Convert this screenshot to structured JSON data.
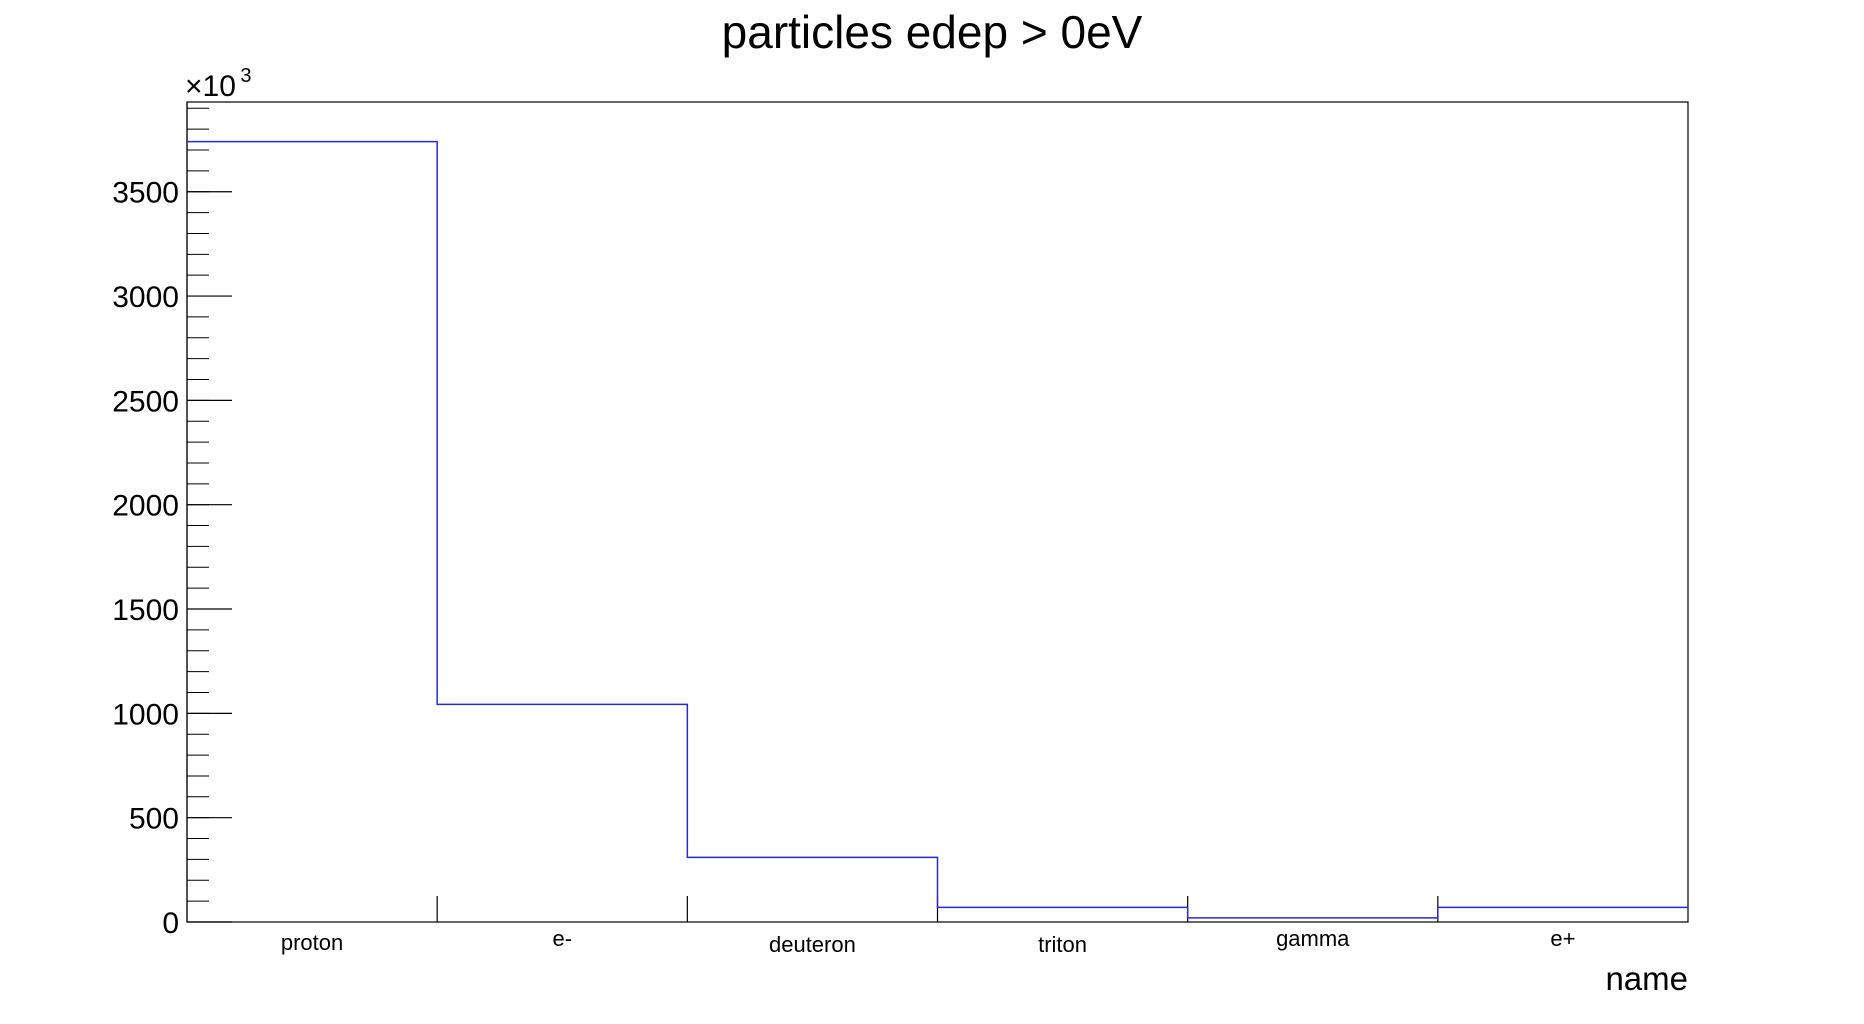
{
  "chart_data": {
    "type": "bar",
    "style": "step-histogram",
    "title": "particles edep > 0eV",
    "xlabel": "name",
    "ylabel": "",
    "y_multiplier_base": "×10",
    "y_multiplier_exp": "3",
    "categories": [
      "proton",
      "e-",
      "deuteron",
      "triton",
      "gamma",
      "e+"
    ],
    "values": [
      3740,
      1043,
      310,
      70,
      20,
      70
    ],
    "yticks": [
      0,
      500,
      1000,
      1500,
      2000,
      2500,
      3000,
      3500
    ],
    "ytick_labels": [
      "0",
      "500",
      "1000",
      "1500",
      "2000",
      "2500",
      "3000",
      "3500"
    ],
    "ylim": [
      0,
      3930
    ],
    "grid": false,
    "line_color": "#2a2ad0"
  }
}
